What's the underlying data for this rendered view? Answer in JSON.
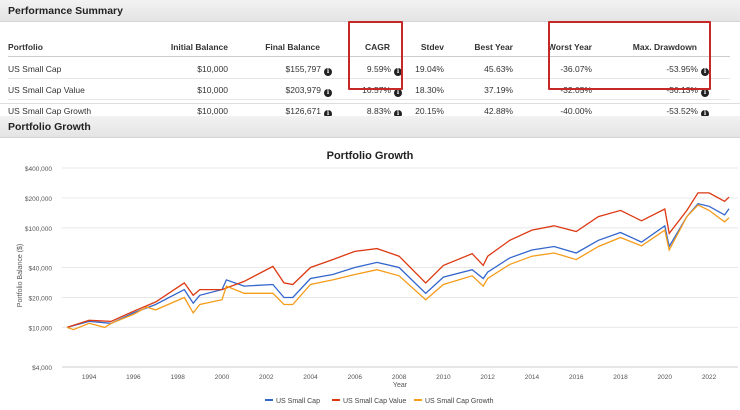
{
  "summary": {
    "title": "Performance Summary",
    "columns": [
      "Portfolio",
      "Initial Balance",
      "Final Balance",
      "CAGR",
      "Stdev",
      "Best Year",
      "Worst Year",
      "Max. Drawdown"
    ],
    "rows": [
      [
        "US Small Cap",
        "$10,000",
        "$155,797",
        "9.59%",
        "19.04%",
        "45.63%",
        "-36.07%",
        "-53.95%"
      ],
      [
        "US Small Cap Value",
        "$10,000",
        "$203,979",
        "10.57%",
        "18.30%",
        "37.19%",
        "-32.05%",
        "-56.13%"
      ],
      [
        "US Small Cap Growth",
        "$10,000",
        "$126,671",
        "8.83%",
        "20.15%",
        "42.88%",
        "-40.00%",
        "-53.52%"
      ]
    ],
    "info_icon": "info-circle-icon",
    "highlight_color": "#c62828"
  },
  "growth": {
    "title": "Portfolio Growth"
  },
  "chart_data": {
    "type": "line",
    "title": "Portfolio Growth",
    "xlabel": "Year",
    "ylabel": "Portfolio Balance ($)",
    "yscale": "log",
    "ylim": [
      4000,
      400000
    ],
    "xlim": [
      1993,
      2022.9
    ],
    "yticks": [
      "$4,000",
      "$10,000",
      "$20,000",
      "$40,000",
      "$100,000",
      "$200,000",
      "$400,000"
    ],
    "ytick_values": [
      4000,
      10000,
      20000,
      40000,
      100000,
      200000,
      400000
    ],
    "xticks": [
      "1994",
      "1996",
      "1998",
      "2000",
      "2002",
      "2004",
      "2006",
      "2008",
      "2010",
      "2012",
      "2014",
      "2016",
      "2018",
      "2020",
      "2022"
    ],
    "grid": true,
    "legend": "bottom",
    "series": [
      {
        "name": "US Small Cap",
        "color": "#3366cc",
        "points": [
          [
            1993,
            10000
          ],
          [
            1994,
            11500
          ],
          [
            1995,
            11000
          ],
          [
            1996,
            14000
          ],
          [
            1997,
            17000
          ],
          [
            1998.3,
            24000
          ],
          [
            1998.7,
            17500
          ],
          [
            1999,
            21000
          ],
          [
            2000,
            24000
          ],
          [
            2000.2,
            30000
          ],
          [
            2001,
            26000
          ],
          [
            2002.3,
            27000
          ],
          [
            2002.8,
            20000
          ],
          [
            2003.2,
            20000
          ],
          [
            2004,
            31000
          ],
          [
            2005,
            34000
          ],
          [
            2006,
            40000
          ],
          [
            2007,
            45000
          ],
          [
            2008,
            40000
          ],
          [
            2009.2,
            22000
          ],
          [
            2010,
            32000
          ],
          [
            2011.3,
            38000
          ],
          [
            2011.8,
            31000
          ],
          [
            2012,
            36000
          ],
          [
            2013,
            50000
          ],
          [
            2014,
            60000
          ],
          [
            2015,
            65000
          ],
          [
            2016,
            56000
          ],
          [
            2017,
            75000
          ],
          [
            2018,
            90000
          ],
          [
            2018.95,
            72000
          ],
          [
            2020,
            105000
          ],
          [
            2020.2,
            65000
          ],
          [
            2021,
            130000
          ],
          [
            2021.5,
            175000
          ],
          [
            2022,
            165000
          ],
          [
            2022.7,
            135000
          ],
          [
            2022.9,
            155797
          ]
        ]
      },
      {
        "name": "US Small Cap Value",
        "color": "#dc3912",
        "points": [
          [
            1993,
            10000
          ],
          [
            1994,
            11800
          ],
          [
            1995,
            11500
          ],
          [
            1996,
            14500
          ],
          [
            1997,
            18000
          ],
          [
            1998.3,
            28000
          ],
          [
            1998.7,
            21000
          ],
          [
            1999,
            24000
          ],
          [
            2000,
            24000
          ],
          [
            2001,
            29000
          ],
          [
            2002.3,
            41000
          ],
          [
            2002.8,
            28000
          ],
          [
            2003.2,
            27000
          ],
          [
            2004,
            40000
          ],
          [
            2005,
            48000
          ],
          [
            2006,
            58000
          ],
          [
            2007,
            62000
          ],
          [
            2008,
            52000
          ],
          [
            2009.2,
            28000
          ],
          [
            2010,
            42000
          ],
          [
            2011.3,
            55000
          ],
          [
            2011.8,
            42000
          ],
          [
            2012,
            52000
          ],
          [
            2013,
            75000
          ],
          [
            2014,
            95000
          ],
          [
            2015,
            105000
          ],
          [
            2016,
            92000
          ],
          [
            2017,
            130000
          ],
          [
            2018,
            150000
          ],
          [
            2018.95,
            118000
          ],
          [
            2020,
            155000
          ],
          [
            2020.2,
            88000
          ],
          [
            2021,
            150000
          ],
          [
            2021.5,
            225000
          ],
          [
            2022,
            225000
          ],
          [
            2022.7,
            185000
          ],
          [
            2022.9,
            203979
          ]
        ]
      },
      {
        "name": "US Small Cap Growth",
        "color": "#f59c1a",
        "points": [
          [
            1993,
            10000
          ],
          [
            1993.3,
            9500
          ],
          [
            1994,
            11000
          ],
          [
            1994.7,
            10000
          ],
          [
            1995,
            11000
          ],
          [
            1996,
            13500
          ],
          [
            1996.6,
            16000
          ],
          [
            1997,
            15000
          ],
          [
            1998.3,
            20000
          ],
          [
            1998.7,
            14000
          ],
          [
            1999,
            17000
          ],
          [
            2000,
            19000
          ],
          [
            2000.2,
            26000
          ],
          [
            2001,
            22000
          ],
          [
            2002.3,
            22000
          ],
          [
            2002.8,
            17000
          ],
          [
            2003.2,
            17000
          ],
          [
            2004,
            27000
          ],
          [
            2005,
            30000
          ],
          [
            2006,
            34000
          ],
          [
            2007,
            38000
          ],
          [
            2008,
            33000
          ],
          [
            2009.2,
            19000
          ],
          [
            2010,
            27000
          ],
          [
            2011.3,
            33000
          ],
          [
            2011.8,
            26000
          ],
          [
            2012,
            31000
          ],
          [
            2013,
            43000
          ],
          [
            2014,
            52000
          ],
          [
            2015,
            56000
          ],
          [
            2016,
            48000
          ],
          [
            2017,
            65000
          ],
          [
            2018,
            80000
          ],
          [
            2018.95,
            66000
          ],
          [
            2020,
            95000
          ],
          [
            2020.2,
            60000
          ],
          [
            2021,
            130000
          ],
          [
            2021.5,
            170000
          ],
          [
            2022,
            150000
          ],
          [
            2022.7,
            115000
          ],
          [
            2022.9,
            126671
          ]
        ]
      }
    ]
  }
}
